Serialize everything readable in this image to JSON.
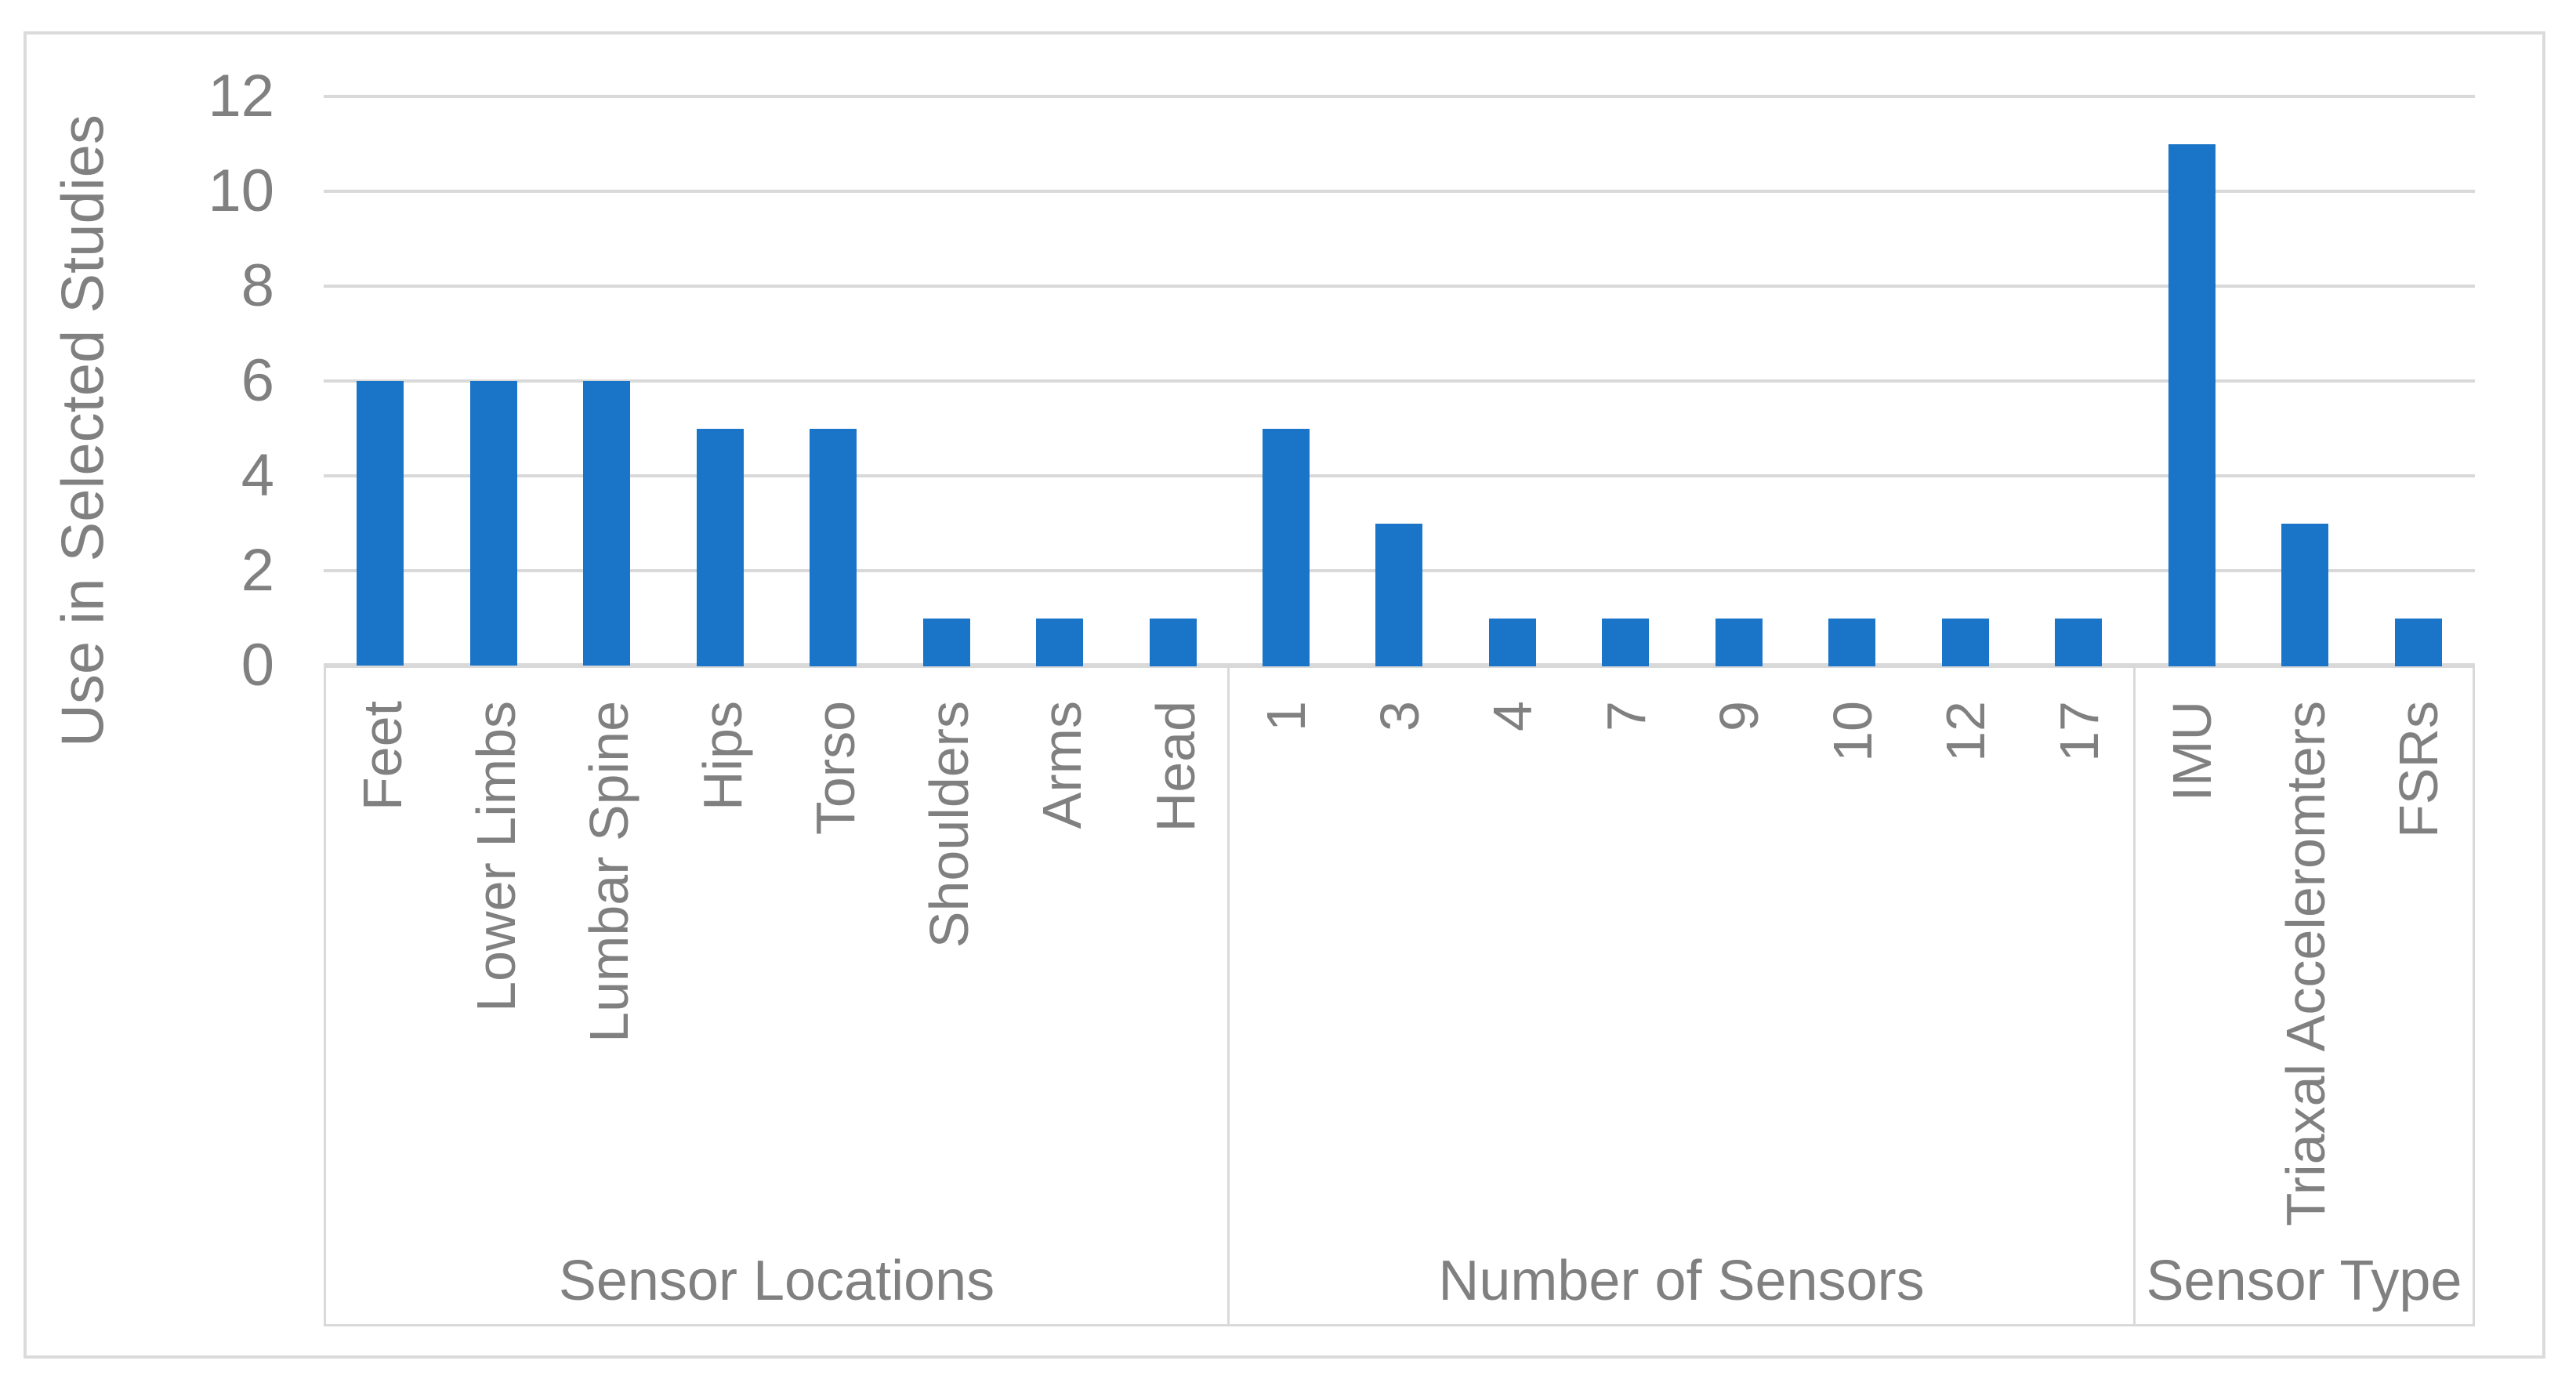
{
  "chart_data": {
    "type": "bar",
    "title": "",
    "xlabel": "",
    "ylabel": "Use in Selected Studies",
    "ylim": [
      0,
      12
    ],
    "yticks": [
      0,
      2,
      4,
      6,
      8,
      10,
      12
    ],
    "grid": "horizontal",
    "legend": "none",
    "bar_color": "#1A74C8",
    "grid_color": "#D9D9D9",
    "text_color": "#808080",
    "border_color": "#DBDBDB",
    "groups": [
      {
        "label": "Sensor Locations",
        "categories": [
          "Feet",
          "Lower Limbs",
          "Lumbar Spine",
          "Hips",
          "Torso",
          "Shoulders",
          "Arms",
          "Head"
        ],
        "values": [
          6,
          6,
          6,
          5,
          5,
          1,
          1,
          1
        ]
      },
      {
        "label": "Number of Sensors",
        "categories": [
          "1",
          "3",
          "4",
          "7",
          "9",
          "10",
          "12",
          "17"
        ],
        "values": [
          5,
          3,
          1,
          1,
          1,
          1,
          1,
          1
        ]
      },
      {
        "label": "Sensor Type",
        "categories": [
          "IMU",
          "Triaxal Acceleromters",
          "FSRs"
        ],
        "values": [
          11,
          3,
          1
        ]
      }
    ]
  }
}
